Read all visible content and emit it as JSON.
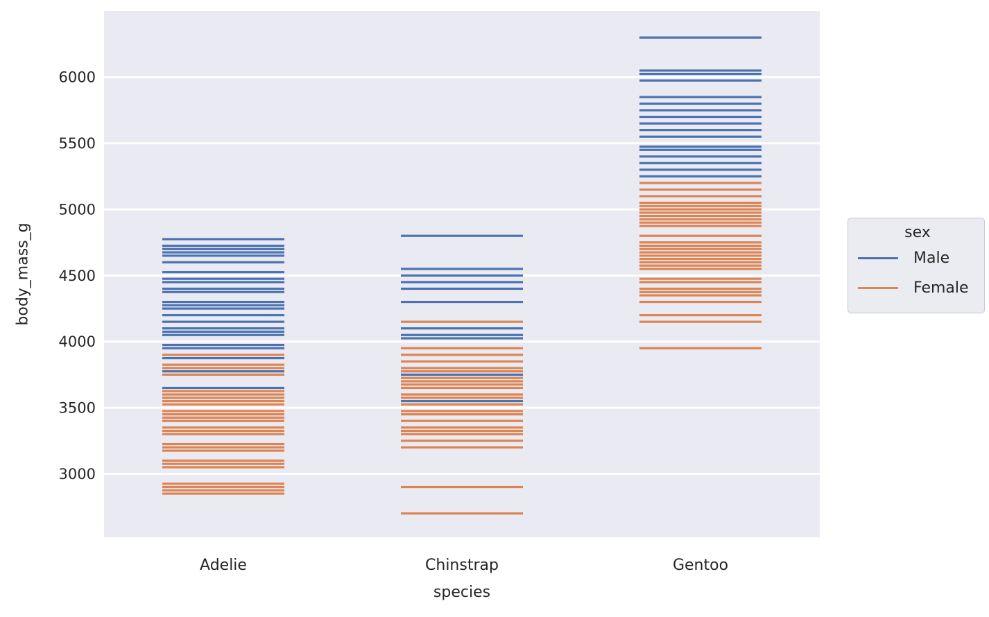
{
  "chart_data": {
    "type": "scatter",
    "marker": "horizontal-dash",
    "title": "",
    "xlabel": "species",
    "ylabel": "body_mass_g",
    "categories": [
      "Adelie",
      "Chinstrap",
      "Gentoo"
    ],
    "yticks": [
      3000,
      3500,
      4000,
      4500,
      5000,
      5500,
      6000
    ],
    "ylim": [
      2520,
      6500
    ],
    "grid": true,
    "plot_bg": "#eaeaf2",
    "grid_color": "#ffffff",
    "tick_color": "#262626",
    "legend": {
      "title": "sex",
      "position": "right-outside"
    },
    "series": [
      {
        "name": "Male",
        "color": "#4c72b0",
        "values": {
          "Adelie": [
            4775,
            4725,
            4700,
            4675,
            4650,
            4600,
            4525,
            4475,
            4450,
            4400,
            4375,
            4300,
            4275,
            4250,
            4200,
            4150,
            4100,
            4075,
            4050,
            3975,
            3950,
            3875,
            3775,
            3650
          ],
          "Chinstrap": [
            4800,
            4550,
            4500,
            4450,
            4400,
            4300,
            4100,
            4050,
            4025,
            3750,
            3550
          ],
          "Gentoo": [
            6300,
            6050,
            6025,
            5975,
            5850,
            5800,
            5750,
            5700,
            5650,
            5600,
            5550,
            5475,
            5450,
            5400,
            5350,
            5300,
            5250
          ]
        }
      },
      {
        "name": "Female",
        "color": "#dd8452",
        "values": {
          "Adelie": [
            3900,
            3825,
            3800,
            3750,
            3625,
            3600,
            3575,
            3550,
            3525,
            3475,
            3450,
            3425,
            3400,
            3350,
            3325,
            3300,
            3225,
            3200,
            3175,
            3100,
            3075,
            3050,
            2925,
            2900,
            2875,
            2850
          ],
          "Chinstrap": [
            4150,
            3950,
            3900,
            3850,
            3800,
            3775,
            3725,
            3700,
            3675,
            3650,
            3600,
            3575,
            3525,
            3475,
            3450,
            3400,
            3350,
            3325,
            3300,
            3250,
            3200,
            2900,
            2700
          ],
          "Gentoo": [
            5200,
            5150,
            5100,
            5050,
            5025,
            5000,
            4975,
            4950,
            4925,
            4900,
            4875,
            4800,
            4750,
            4725,
            4700,
            4675,
            4650,
            4625,
            4600,
            4575,
            4550,
            4475,
            4450,
            4400,
            4375,
            4350,
            4300,
            4200,
            4150,
            3950
          ]
        }
      }
    ]
  }
}
